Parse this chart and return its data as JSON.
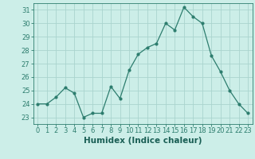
{
  "x": [
    0,
    1,
    2,
    3,
    4,
    5,
    6,
    7,
    8,
    9,
    10,
    11,
    12,
    13,
    14,
    15,
    16,
    17,
    18,
    19,
    20,
    21,
    22,
    23
  ],
  "y": [
    24,
    24,
    24.5,
    25.2,
    24.8,
    23,
    23.3,
    23.3,
    25.3,
    24.4,
    26.5,
    27.7,
    28.2,
    28.5,
    30,
    29.5,
    31.2,
    30.5,
    30,
    27.6,
    26.4,
    25,
    24,
    23.3
  ],
  "line_color": "#2d7d6e",
  "marker": "o",
  "marker_size": 2,
  "bg_color": "#cceee8",
  "grid_color": "#aad4ce",
  "tick_color": "#2d7d6e",
  "label_color": "#1a5f55",
  "xlabel": "Humidex (Indice chaleur)",
  "xlim": [
    -0.5,
    23.5
  ],
  "ylim": [
    22.5,
    31.5
  ],
  "yticks": [
    23,
    24,
    25,
    26,
    27,
    28,
    29,
    30,
    31
  ],
  "xtick_labels": [
    "0",
    "1",
    "2",
    "3",
    "4",
    "5",
    "6",
    "7",
    "8",
    "9",
    "10",
    "11",
    "12",
    "13",
    "14",
    "15",
    "16",
    "17",
    "18",
    "19",
    "20",
    "21",
    "22",
    "23"
  ],
  "font_size": 6.0,
  "label_font_size": 7.5
}
